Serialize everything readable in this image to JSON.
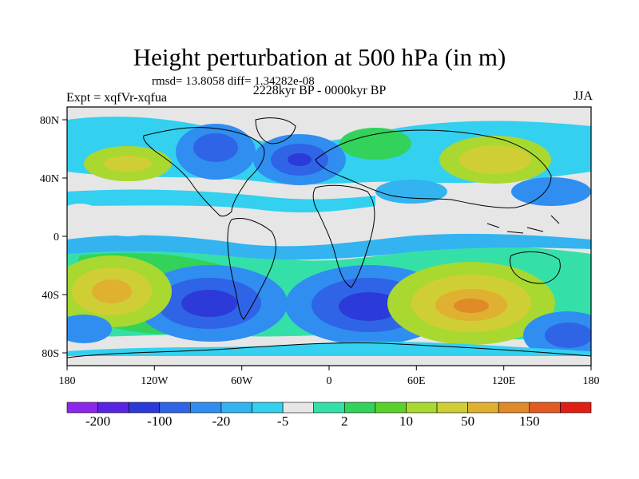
{
  "title": "Height perturbation at 500 hPa (in m)",
  "stats": "rmsd= 13.8058 diff= 1.34282e-08",
  "period": "2228kyr BP - 0000kyr BP",
  "experiment": "Expt = xqfVr-xqfua",
  "season": "JJA",
  "axes": {
    "x_ticks": [
      "180",
      "120W",
      "60W",
      "0",
      "60E",
      "120E",
      "180"
    ],
    "y_ticks": [
      "80N",
      "40N",
      "0",
      "40S",
      "80S"
    ]
  },
  "colorbar": {
    "colors": [
      "#8d26eb",
      "#5a24e6",
      "#2b3ad8",
      "#2f64e6",
      "#2f8ef0",
      "#33b3f0",
      "#33d0f0",
      "#e6e6e6",
      "#35e0a8",
      "#33d25a",
      "#5ad22a",
      "#a9d830",
      "#cfcf35",
      "#e0b030",
      "#e08a28",
      "#e25a22",
      "#e01e14"
    ],
    "labels": [
      "-200",
      "-100",
      "-20",
      "-5",
      "2",
      "10",
      "50",
      "150"
    ]
  },
  "colors": {
    "deep_neg": "#2b3ad8",
    "mid_neg": "#2f8ef0",
    "light_neg": "#33d0f0",
    "neutral": "#e6e6e6",
    "light_pos": "#33d25a",
    "mid_pos": "#cfcf35",
    "strong_pos": "#e08a28"
  }
}
